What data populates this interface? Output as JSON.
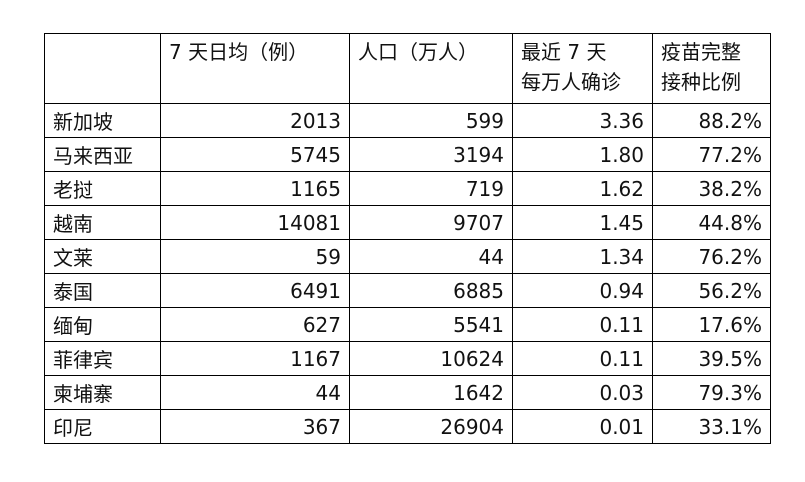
{
  "table": {
    "header": [
      [],
      [
        "7 天日均（例）"
      ],
      [
        "人口（万人）"
      ],
      [
        "最近 7 天",
        "每万人确诊"
      ],
      [
        "疫苗完整",
        "接种比例"
      ]
    ],
    "rows": [
      [
        "新加坡",
        "2013",
        "599",
        "3.36",
        "88.2%"
      ],
      [
        "马来西亚",
        "5745",
        "3194",
        "1.80",
        "77.2%"
      ],
      [
        "老挝",
        "1165",
        "719",
        "1.62",
        "38.2%"
      ],
      [
        "越南",
        "14081",
        "9707",
        "1.45",
        "44.8%"
      ],
      [
        "文莱",
        "59",
        "44",
        "1.34",
        "76.2%"
      ],
      [
        "泰国",
        "6491",
        "6885",
        "0.94",
        "56.2%"
      ],
      [
        "缅甸",
        "627",
        "5541",
        "0.11",
        "17.6%"
      ],
      [
        "菲律宾",
        "1167",
        "10624",
        "0.11",
        "39.5%"
      ],
      [
        "柬埔寨",
        "44",
        "1642",
        "0.03",
        "79.3%"
      ],
      [
        "印尼",
        "367",
        "26904",
        "0.01",
        "33.1%"
      ]
    ]
  }
}
